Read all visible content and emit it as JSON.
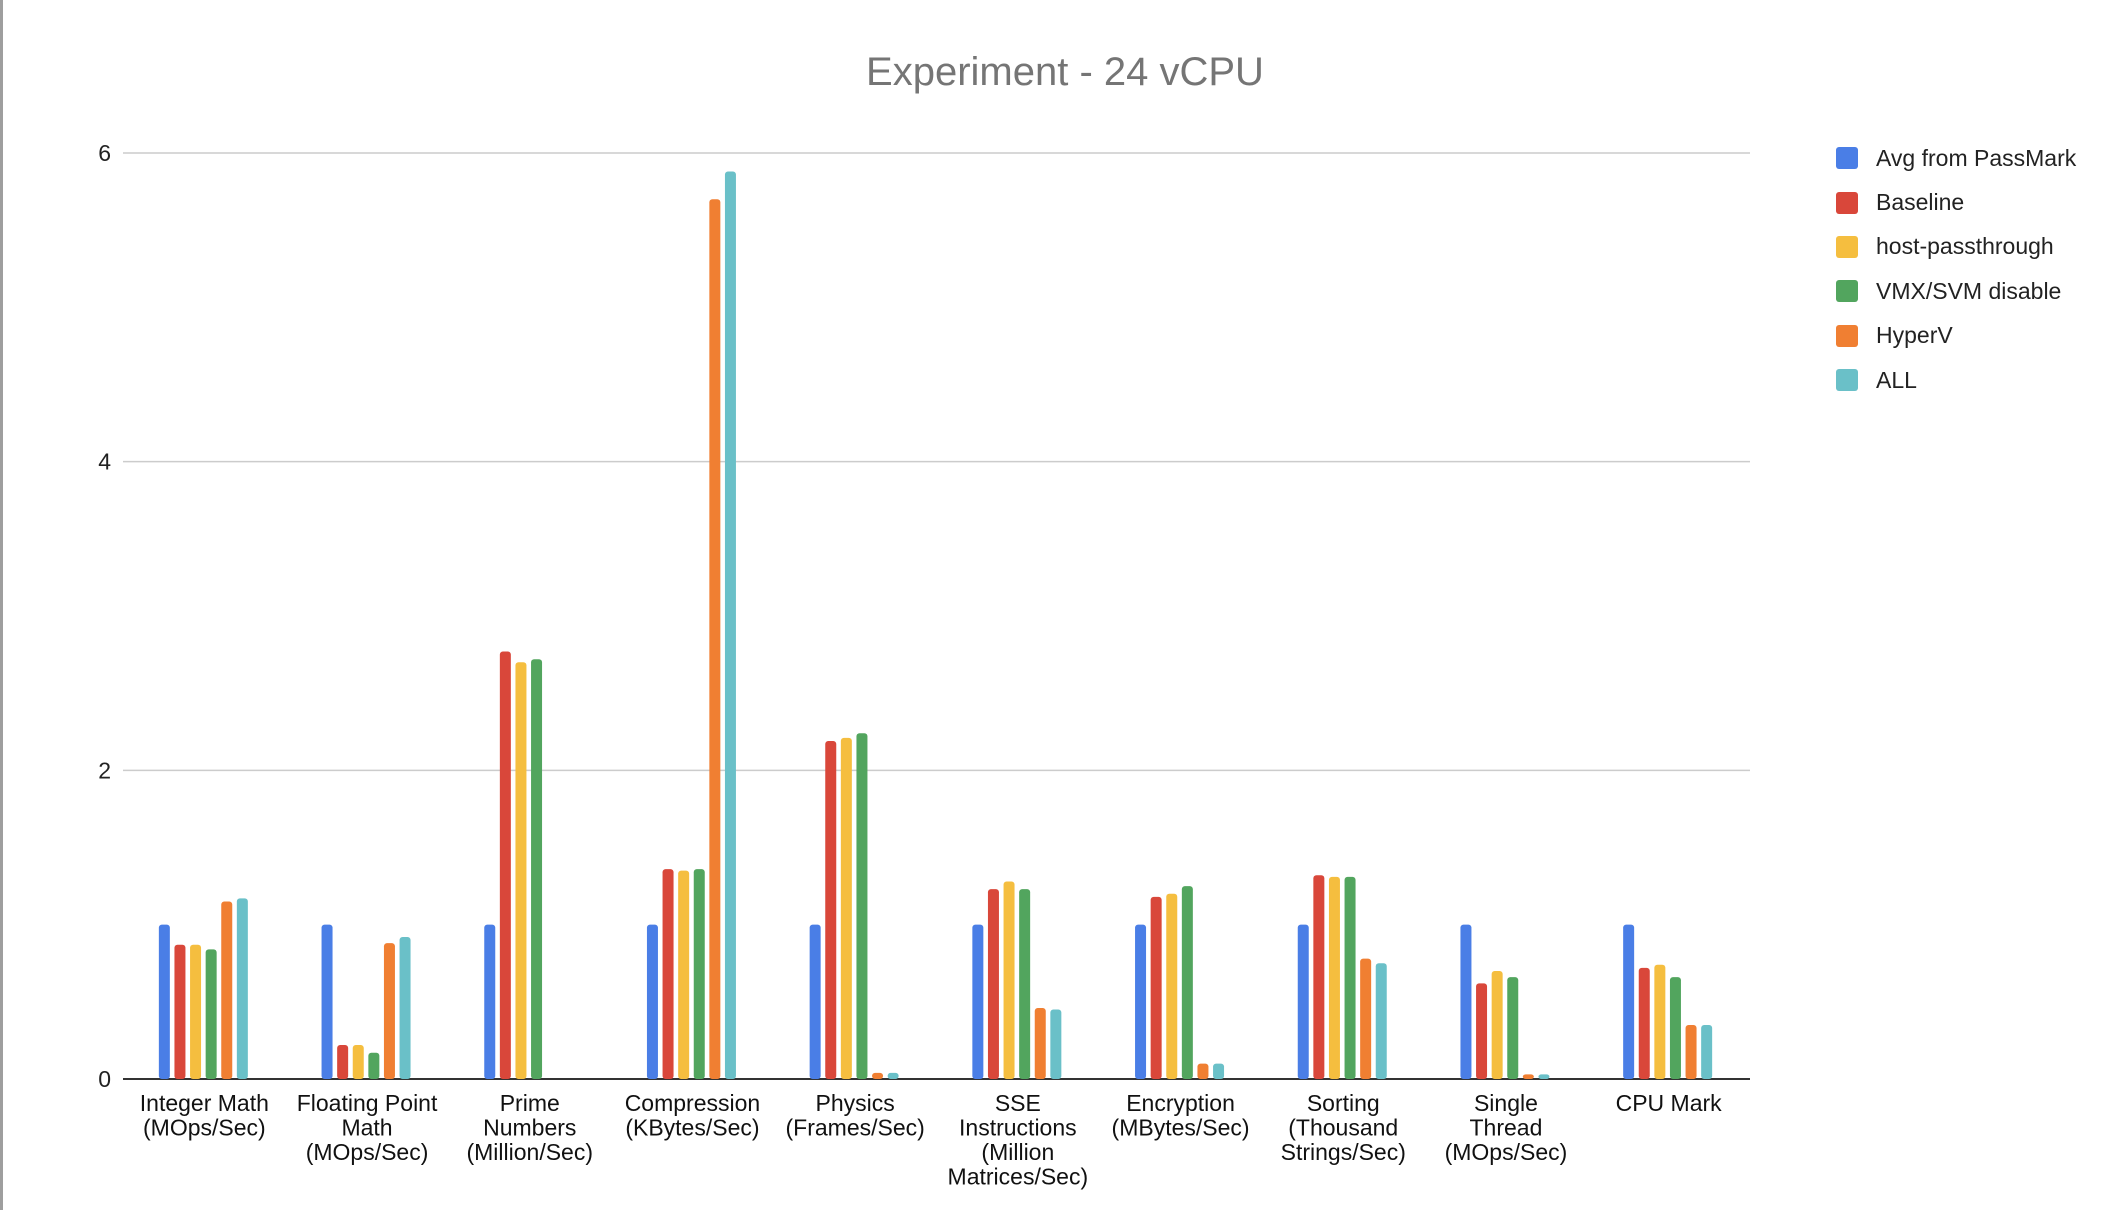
{
  "chart_data": {
    "type": "bar",
    "title": "Experiment - 24 vCPU",
    "xlabel": "",
    "ylabel": "",
    "ylim": [
      0,
      6
    ],
    "yticks": [
      0,
      2,
      4,
      6
    ],
    "grid": true,
    "legend_position": "right",
    "categories": [
      [
        "Integer Math",
        "(MOps/Sec)"
      ],
      [
        "Floating Point",
        "Math",
        "(MOps/Sec)"
      ],
      [
        "Prime",
        "Numbers",
        "(Million/Sec)"
      ],
      [
        "Compression",
        "(KBytes/Sec)"
      ],
      [
        "Physics",
        "(Frames/Sec)"
      ],
      [
        "SSE",
        "Instructions",
        "(Million",
        "Matrices/Sec)"
      ],
      [
        "Encryption",
        "(MBytes/Sec)"
      ],
      [
        "Sorting",
        "(Thousand",
        "Strings/Sec)"
      ],
      [
        "Single",
        "Thread",
        "(MOps/Sec)"
      ],
      [
        "CPU Mark"
      ]
    ],
    "series": [
      {
        "name": "Avg from PassMark",
        "color": "#4a7ee6",
        "values": [
          1.0,
          1.0,
          1.0,
          1.0,
          1.0,
          1.0,
          1.0,
          1.0,
          1.0,
          1.0
        ]
      },
      {
        "name": "Baseline",
        "color": "#d9473a",
        "values": [
          0.87,
          0.22,
          2.77,
          1.36,
          2.19,
          1.23,
          1.18,
          1.32,
          0.62,
          0.72
        ]
      },
      {
        "name": "host-passthrough",
        "color": "#f5be3f",
        "values": [
          0.87,
          0.22,
          2.7,
          1.35,
          2.21,
          1.28,
          1.2,
          1.31,
          0.7,
          0.74
        ]
      },
      {
        "name": "VMX/SVM disable",
        "color": "#52a55e",
        "values": [
          0.84,
          0.17,
          2.72,
          1.36,
          2.24,
          1.23,
          1.25,
          1.31,
          0.66,
          0.66
        ]
      },
      {
        "name": "HyperV",
        "color": "#f07f32",
        "values": [
          1.15,
          0.88,
          0,
          5.7,
          0.04,
          0.46,
          0.1,
          0.78,
          0.03,
          0.35
        ]
      },
      {
        "name": "ALL",
        "color": "#6ac0c8",
        "values": [
          1.17,
          0.92,
          0,
          5.88,
          0.04,
          0.45,
          0.1,
          0.75,
          0.03,
          0.35
        ]
      }
    ]
  }
}
